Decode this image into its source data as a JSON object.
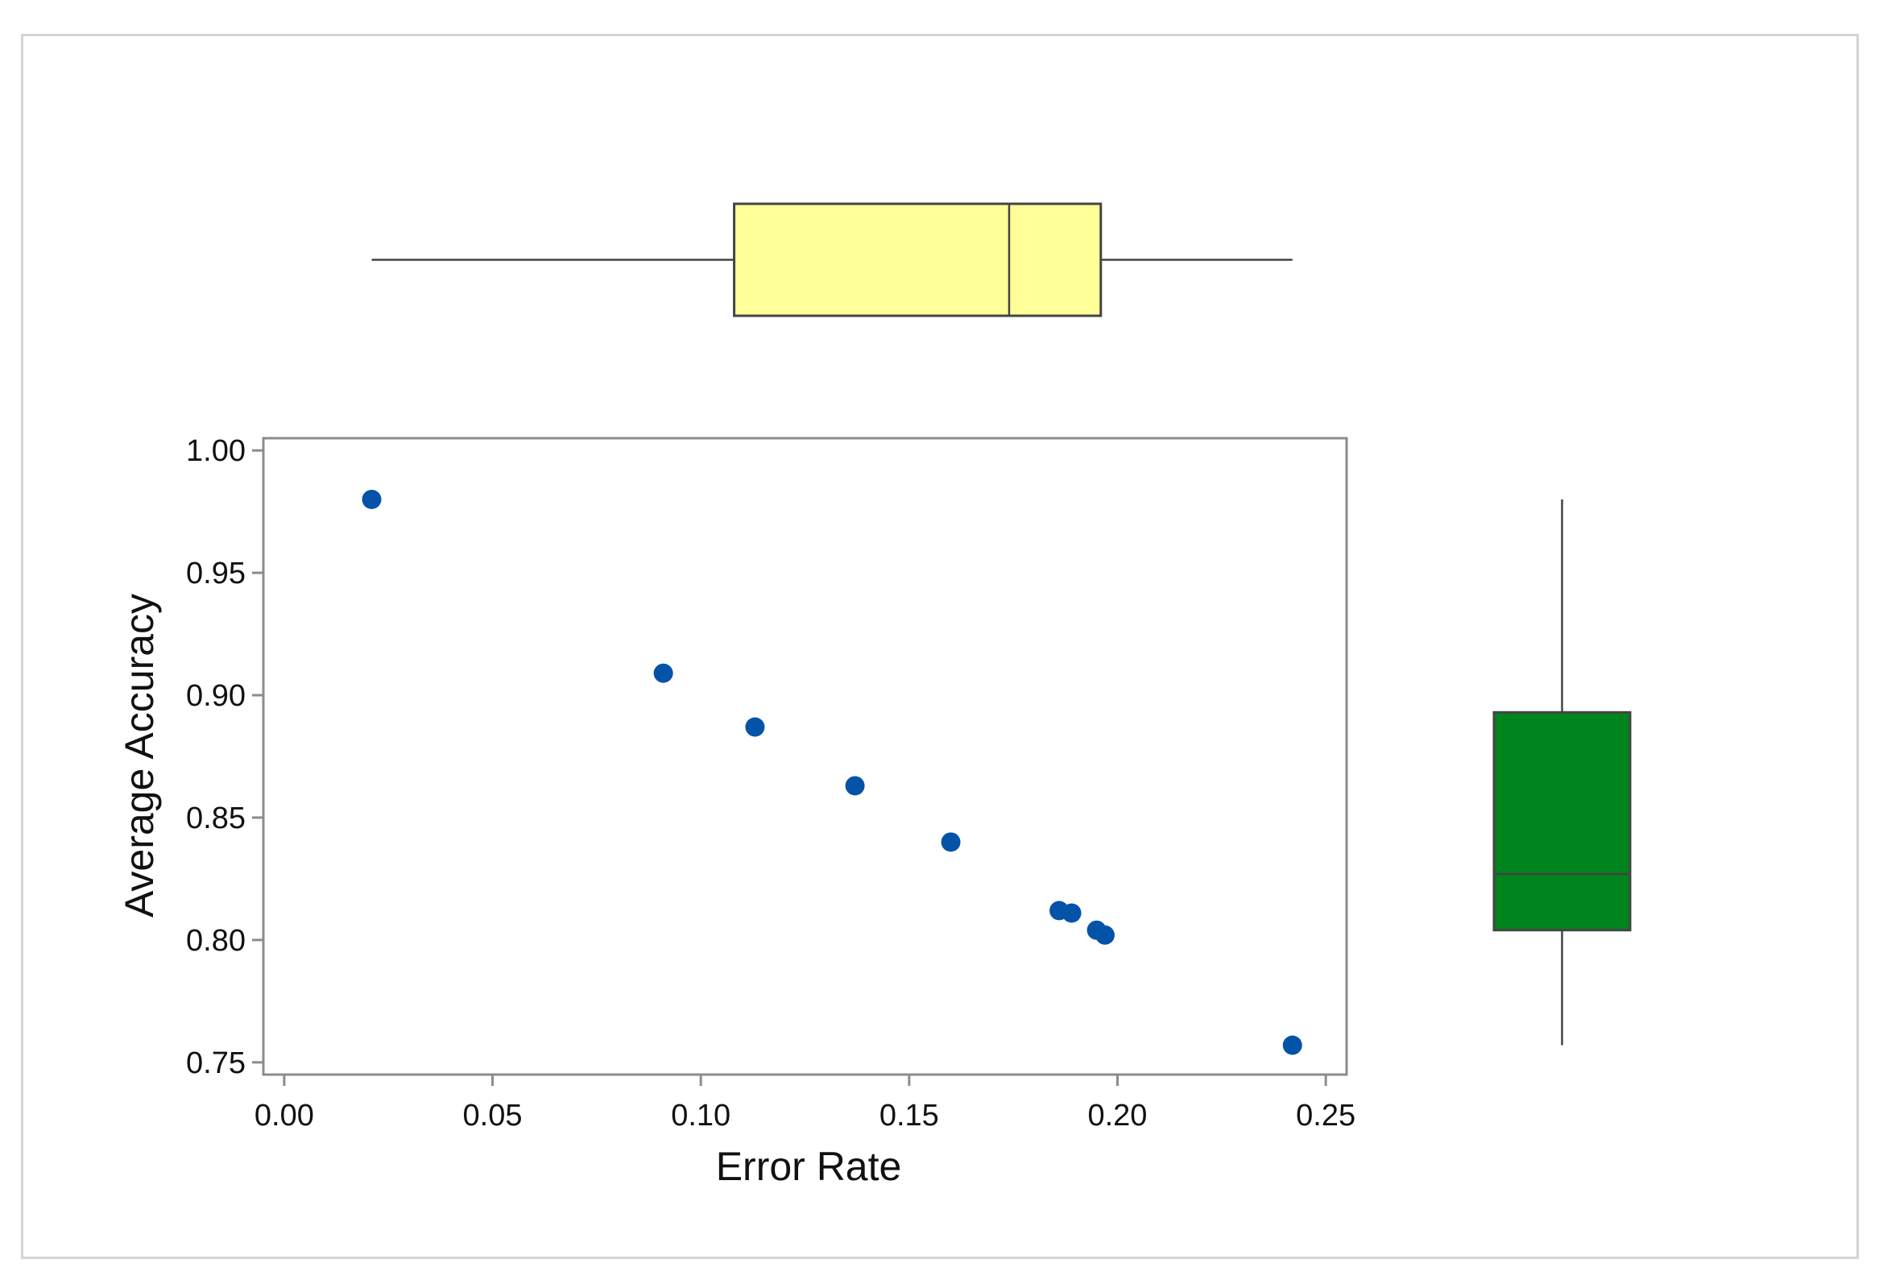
{
  "chart_data": {
    "type": "scatter",
    "title": "",
    "xlabel": "Error Rate",
    "ylabel": "Average Accuracy",
    "xlim": [
      -0.005,
      0.255
    ],
    "ylim": [
      0.745,
      1.005
    ],
    "x_ticks": [
      "0.00",
      "0.05",
      "0.10",
      "0.15",
      "0.20",
      "0.25"
    ],
    "y_ticks": [
      "0.75",
      "0.80",
      "0.85",
      "0.90",
      "0.95",
      "1.00"
    ],
    "grid": false,
    "legend": "none",
    "series": [
      {
        "x": [
          0.021,
          0.091,
          0.113,
          0.137,
          0.16,
          0.186,
          0.189,
          0.195,
          0.197,
          0.242
        ],
        "y": [
          0.98,
          0.909,
          0.887,
          0.863,
          0.84,
          0.812,
          0.811,
          0.804,
          0.802,
          0.757
        ],
        "color": "#0553a8"
      }
    ],
    "marginal_boxplots": {
      "x": {
        "min": 0.021,
        "q1": 0.108,
        "median": 0.174,
        "q3": 0.196,
        "max": 0.242,
        "color": "#ffff99"
      },
      "y": {
        "min": 0.757,
        "q1": 0.804,
        "median": 0.827,
        "q3": 0.893,
        "max": 0.98,
        "color": "#00841e"
      }
    }
  }
}
